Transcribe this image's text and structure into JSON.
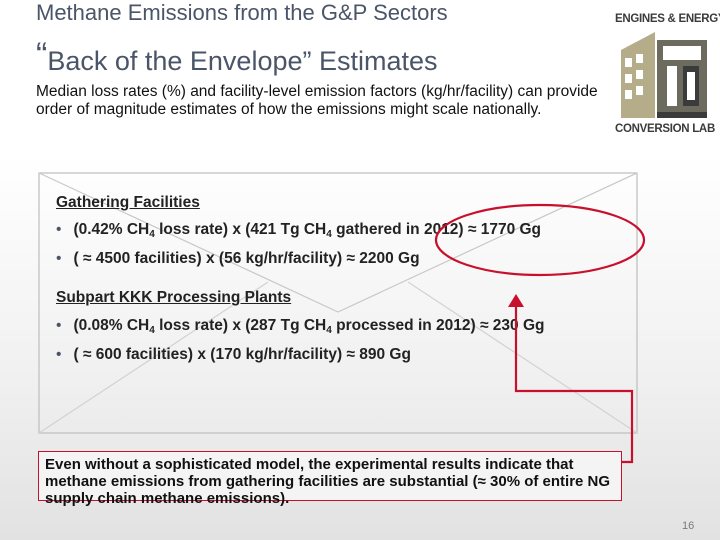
{
  "header": {
    "subtitle": "Methane Emissions from the G&P Sectors",
    "title_quote_open": "“",
    "title_text": "Back of the Envelope” Estimates"
  },
  "intro": "Median loss rates (%) and facility-level emission factors (kg/hr/facility) can provide order of magnitude estimates of how the emissions might scale nationally.",
  "logo": {
    "top_text": "ENGINES & ENERGY",
    "bottom_text": "CONVERSION LAB"
  },
  "sections": [
    {
      "heading": "Gathering Facilities",
      "bullets": [
        {
          "bullet": "•",
          "pre": "(0.42% CH",
          "sub1": "4",
          "mid": " loss rate) x (421 Tg CH",
          "sub2": "4",
          "post": " gathered in 2012) ≈ 1770 Gg"
        },
        {
          "bullet": "•",
          "text": "( ≈ 4500 facilities) x (56 kg/hr/facility) ≈ 2200 Gg"
        }
      ]
    },
    {
      "heading": "Subpart KKK Processing Plants",
      "bullets": [
        {
          "bullet": "•",
          "pre": "(0.08% CH",
          "sub1": "4",
          "mid": " loss rate) x (287 Tg CH",
          "sub2": "4",
          "post": " processed in 2012) ≈ 230 Gg"
        },
        {
          "bullet": "•",
          "text": "( ≈ 600 facilities) x (170 kg/hr/facility) ≈ 890 Gg"
        }
      ]
    }
  ],
  "callout": "Even without a sophisticated model, the experimental results indicate that methane emissions from gathering facilities are substantial (≈ 30% of entire NG supply chain methane emissions).",
  "page_number": "16",
  "colors": {
    "accent_red": "#c8102e",
    "title_gray": "#4a5568",
    "logo_khaki": "#b5ad8a"
  }
}
